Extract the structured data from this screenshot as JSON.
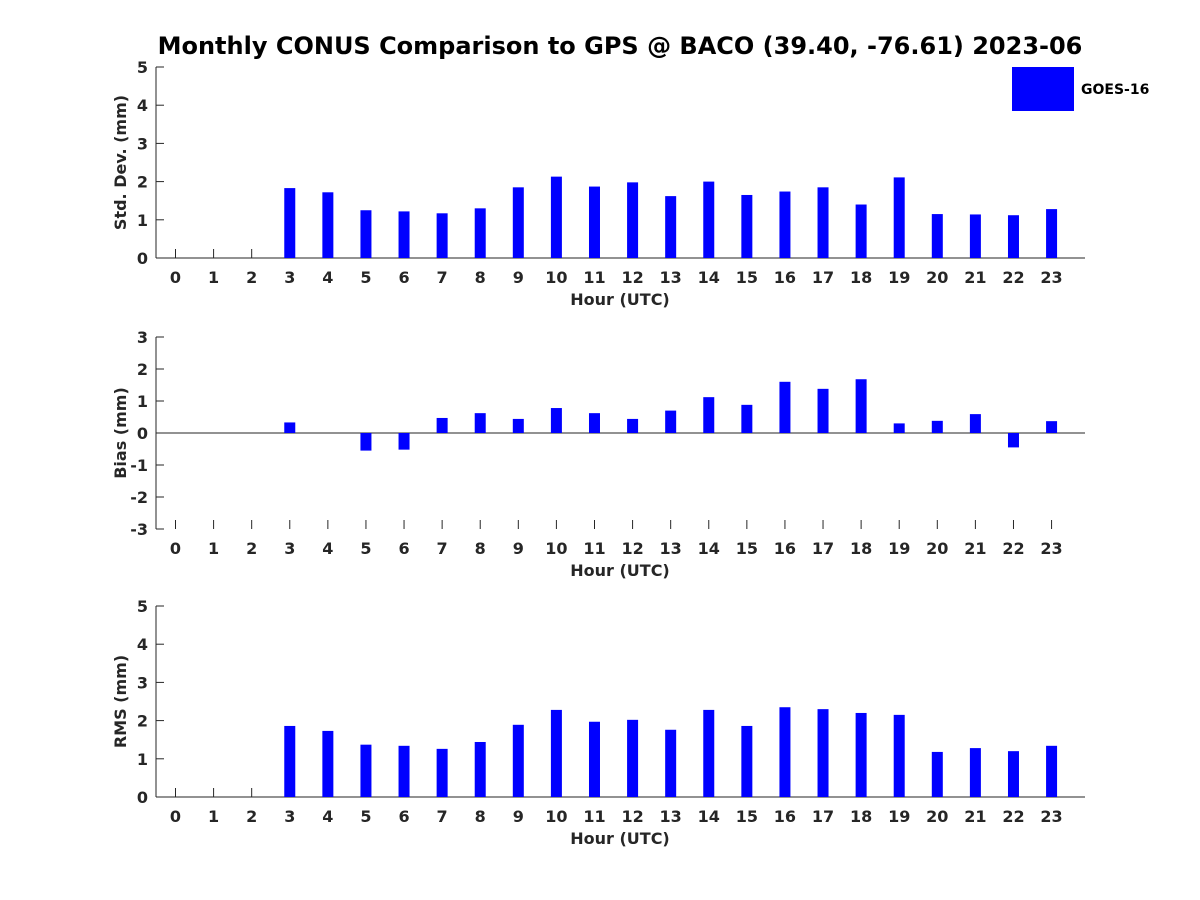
{
  "title": "Monthly CONUS Comparison to GPS @ BACO (39.40, -76.61) 2023-06",
  "legend": {
    "label": "GOES-16",
    "color": "#0000ff",
    "placement": "top-right"
  },
  "chart_data": [
    {
      "type": "bar",
      "xlabel": "Hour (UTC)",
      "ylabel": "Std. Dev. (mm)",
      "ylim": [
        0,
        5
      ],
      "yticks": [
        0,
        1,
        2,
        3,
        4,
        5
      ],
      "categories": [
        0,
        1,
        2,
        3,
        4,
        5,
        6,
        7,
        8,
        9,
        10,
        11,
        12,
        13,
        14,
        15,
        16,
        17,
        18,
        19,
        20,
        21,
        22,
        23
      ],
      "series": [
        {
          "name": "GOES-16",
          "color": "#0000ff",
          "values": [
            null,
            null,
            null,
            1.83,
            1.72,
            1.25,
            1.22,
            1.17,
            1.3,
            1.85,
            2.13,
            1.87,
            1.98,
            1.62,
            2.0,
            1.65,
            1.74,
            1.85,
            1.4,
            2.11,
            1.15,
            1.14,
            1.12,
            1.28
          ]
        }
      ]
    },
    {
      "type": "bar",
      "xlabel": "Hour (UTC)",
      "ylabel": "Bias (mm)",
      "ylim": [
        -3,
        3
      ],
      "yticks": [
        -3,
        -2,
        -1,
        0,
        1,
        2,
        3
      ],
      "categories": [
        0,
        1,
        2,
        3,
        4,
        5,
        6,
        7,
        8,
        9,
        10,
        11,
        12,
        13,
        14,
        15,
        16,
        17,
        18,
        19,
        20,
        21,
        22,
        23
      ],
      "series": [
        {
          "name": "GOES-16",
          "color": "#0000ff",
          "values": [
            null,
            null,
            null,
            0.33,
            0.0,
            -0.55,
            -0.52,
            0.47,
            0.62,
            0.44,
            0.78,
            0.62,
            0.44,
            0.7,
            1.12,
            0.88,
            1.6,
            1.38,
            1.68,
            0.3,
            0.38,
            0.59,
            -0.45,
            0.37
          ]
        }
      ]
    },
    {
      "type": "bar",
      "xlabel": "Hour (UTC)",
      "ylabel": "RMS (mm)",
      "ylim": [
        0,
        5
      ],
      "yticks": [
        0,
        1,
        2,
        3,
        4,
        5
      ],
      "categories": [
        0,
        1,
        2,
        3,
        4,
        5,
        6,
        7,
        8,
        9,
        10,
        11,
        12,
        13,
        14,
        15,
        16,
        17,
        18,
        19,
        20,
        21,
        22,
        23
      ],
      "series": [
        {
          "name": "GOES-16",
          "color": "#0000ff",
          "values": [
            null,
            null,
            null,
            1.86,
            1.73,
            1.37,
            1.34,
            1.26,
            1.44,
            1.89,
            2.28,
            1.97,
            2.02,
            1.76,
            2.28,
            1.86,
            2.35,
            2.3,
            2.2,
            2.15,
            1.18,
            1.28,
            1.2,
            1.34
          ]
        }
      ]
    }
  ]
}
